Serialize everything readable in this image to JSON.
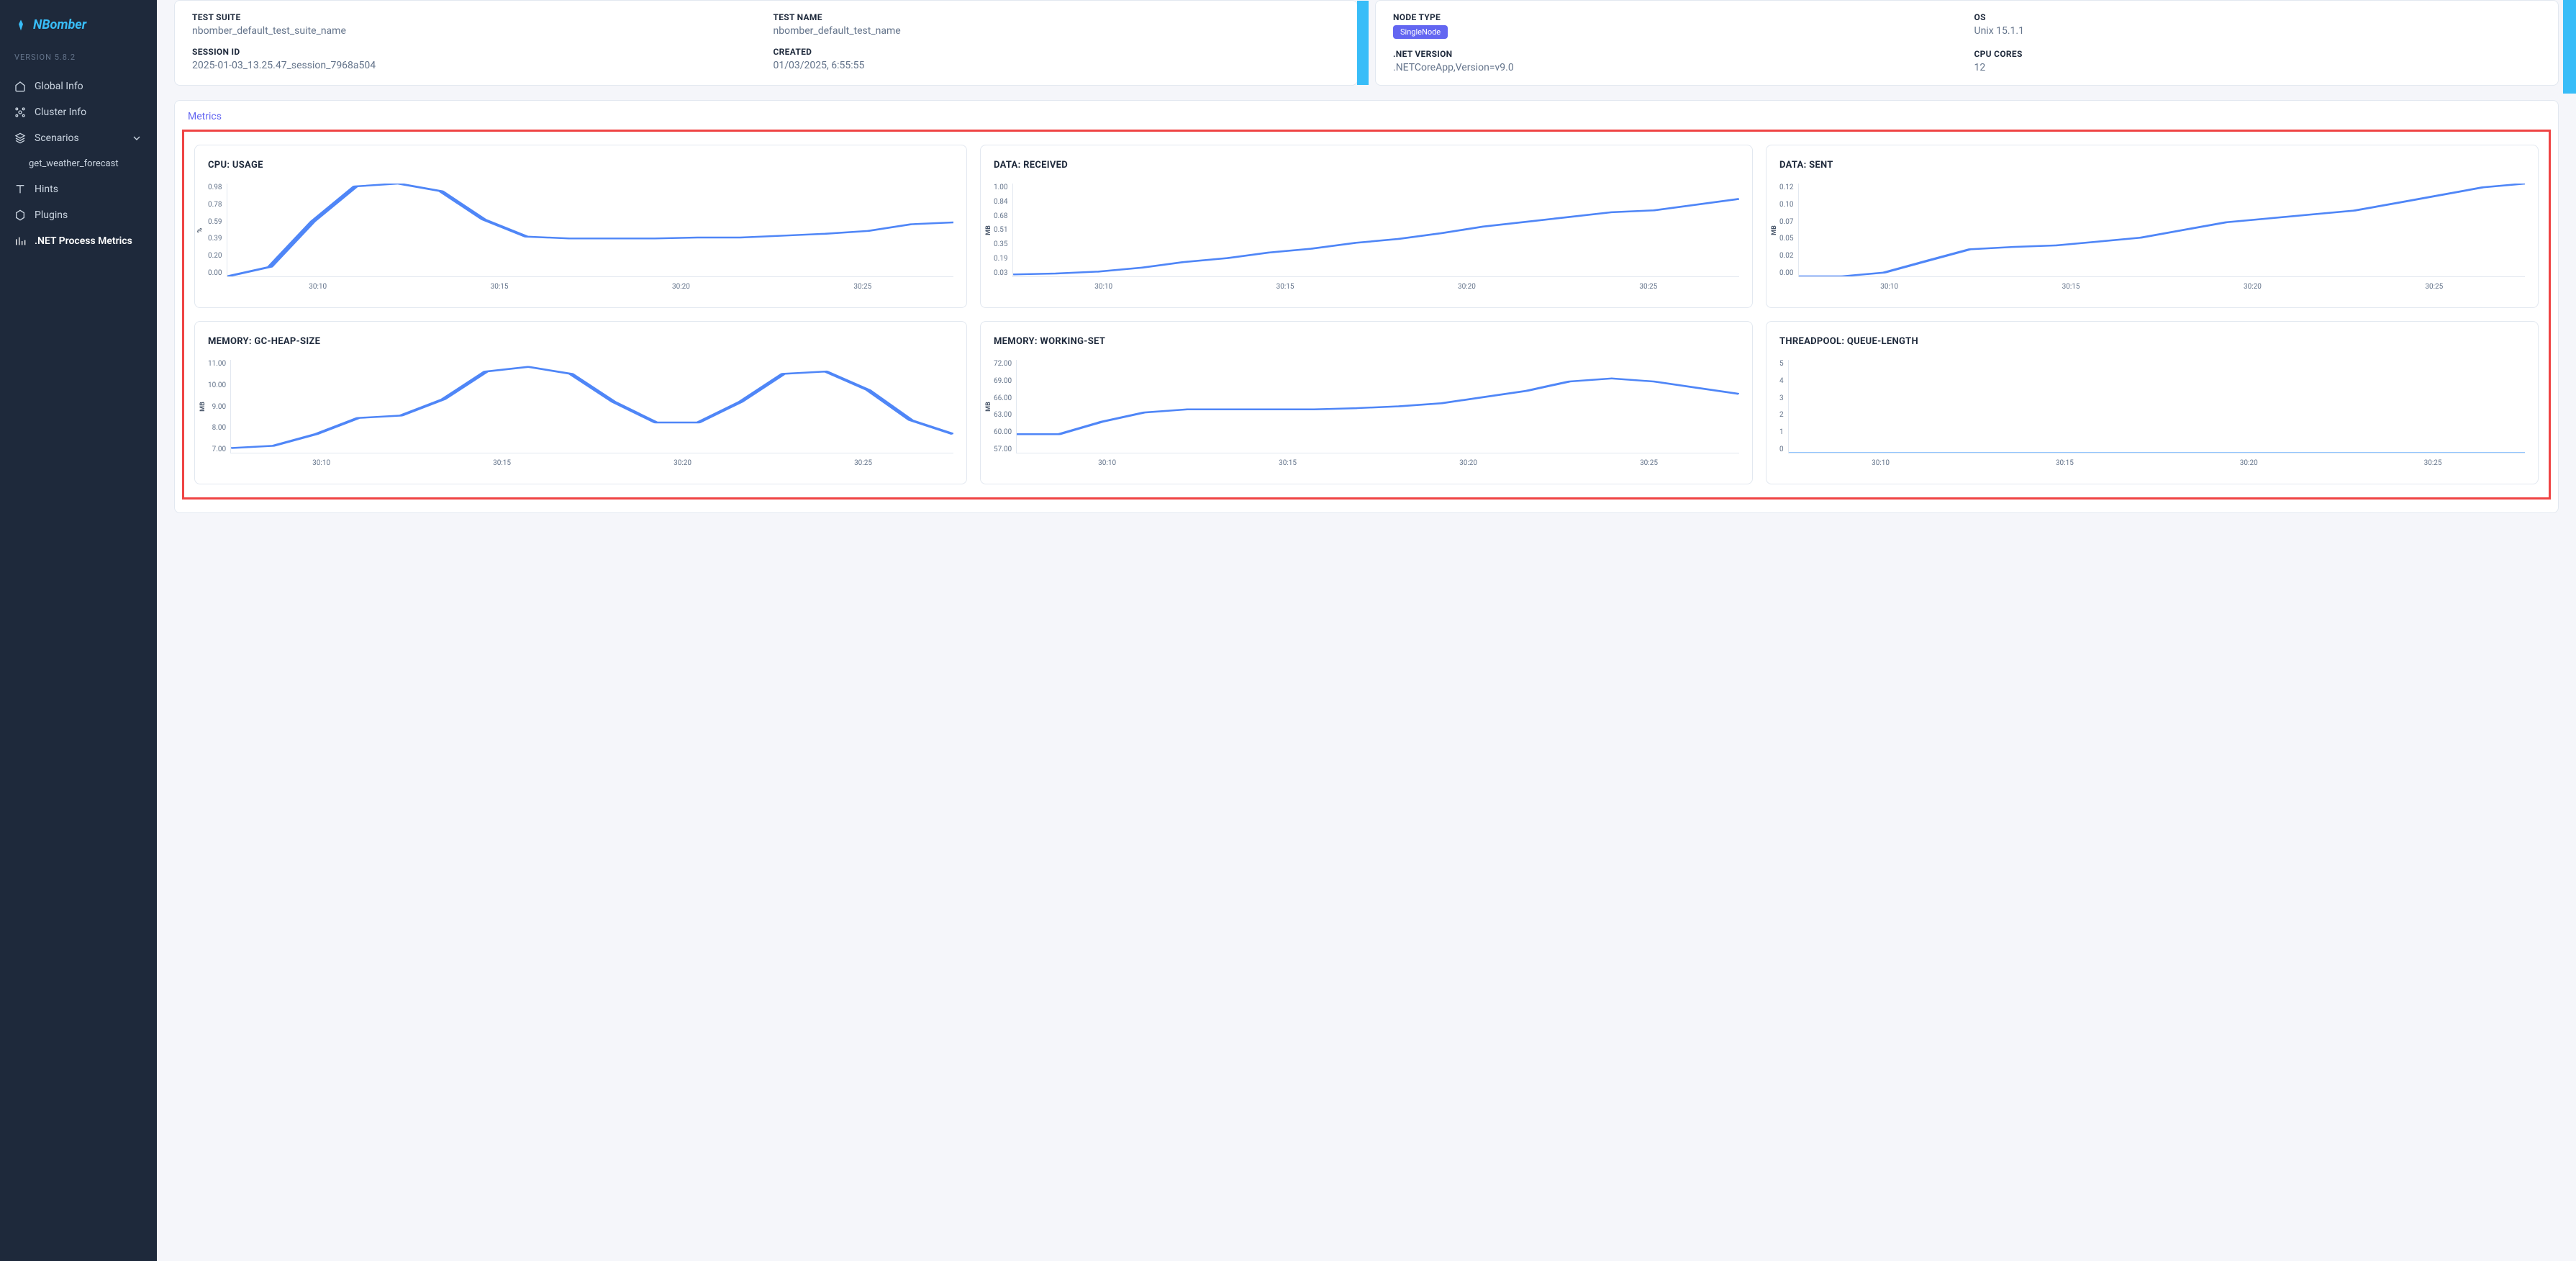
{
  "brand": "NBomber",
  "version": "VERSION 5.8.2",
  "nav": {
    "global": "Global Info",
    "cluster": "Cluster Info",
    "scenarios": "Scenarios",
    "scenario_item": "get_weather_forecast",
    "hints": "Hints",
    "plugins": "Plugins",
    "dotnet": ".NET Process Metrics"
  },
  "info1": {
    "test_suite_label": "TEST SUITE",
    "test_suite_value": "nbomber_default_test_suite_name",
    "test_name_label": "TEST NAME",
    "test_name_value": "nbomber_default_test_name",
    "session_label": "SESSION ID",
    "session_value": "2025-01-03_13.25.47_session_7968a504",
    "created_label": "CREATED",
    "created_value": "01/03/2025, 6:55:55"
  },
  "info2": {
    "node_label": "NODE TYPE",
    "node_value": "SingleNode",
    "os_label": "OS",
    "os_value": "Unix 15.1.1",
    "dotnet_label": ".NET VERSION",
    "dotnet_value": ".NETCoreApp,Version=v9.0",
    "cores_label": "CPU CORES",
    "cores_value": "12"
  },
  "metrics_tab": "Metrics",
  "charts": {
    "x_ticks": [
      "30:10",
      "30:15",
      "30:20",
      "30:25"
    ],
    "line_color": "#4f86f7",
    "grid_color": "#e2e8f0",
    "cpu": {
      "title": "CPU: USAGE",
      "y_unit": "%",
      "y_ticks": [
        "0.98",
        "0.78",
        "0.59",
        "0.39",
        "0.20",
        "0.00"
      ],
      "values": [
        0.0,
        0.1,
        0.58,
        0.95,
        0.98,
        0.9,
        0.6,
        0.42,
        0.4,
        0.4,
        0.4,
        0.41,
        0.41,
        0.43,
        0.45,
        0.48,
        0.55,
        0.57
      ]
    },
    "data_recv": {
      "title": "DATA: RECEIVED",
      "y_unit": "MB",
      "y_ticks": [
        "1.00",
        "0.84",
        "0.68",
        "0.51",
        "0.35",
        "0.19",
        "0.03"
      ],
      "values": [
        0.05,
        0.06,
        0.08,
        0.12,
        0.18,
        0.22,
        0.28,
        0.32,
        0.38,
        0.42,
        0.48,
        0.55,
        0.6,
        0.65,
        0.7,
        0.72,
        0.78,
        0.84
      ]
    },
    "data_sent": {
      "title": "DATA: SENT",
      "y_unit": "MB",
      "y_ticks": [
        "0.12",
        "0.10",
        "0.07",
        "0.05",
        "0.02",
        "0.00"
      ],
      "values": [
        0.0,
        0.0,
        0.005,
        0.02,
        0.035,
        0.038,
        0.04,
        0.045,
        0.05,
        0.06,
        0.07,
        0.075,
        0.08,
        0.085,
        0.095,
        0.105,
        0.115,
        0.12
      ]
    },
    "gc": {
      "title": "MEMORY: GC-HEAP-SIZE",
      "y_unit": "MB",
      "y_ticks": [
        "11.00",
        "10.00",
        "9.00",
        "8.00",
        "7.00"
      ],
      "values": [
        7.2,
        7.3,
        7.8,
        8.5,
        8.6,
        9.3,
        10.5,
        10.7,
        10.4,
        9.2,
        8.3,
        8.3,
        9.2,
        10.4,
        10.5,
        9.7,
        8.4,
        7.8
      ]
    },
    "ws": {
      "title": "MEMORY: WORKING-SET",
      "y_unit": "MB",
      "y_ticks": [
        "72.00",
        "69.00",
        "66.00",
        "63.00",
        "60.00",
        "57.00"
      ],
      "values": [
        60,
        60,
        62,
        63.5,
        64,
        64,
        64,
        64,
        64.2,
        64.5,
        65,
        66,
        67,
        68.5,
        69,
        68.5,
        67.5,
        66.5
      ]
    },
    "tp": {
      "title": "THREADPOOL: QUEUE-LENGTH",
      "y_unit": "",
      "y_ticks": [
        "5",
        "4",
        "3",
        "2",
        "1",
        "0"
      ],
      "values": [
        0,
        0,
        0,
        0,
        0,
        0,
        0,
        0,
        0,
        0,
        0,
        0,
        0,
        0,
        0,
        0,
        0,
        0
      ]
    }
  }
}
